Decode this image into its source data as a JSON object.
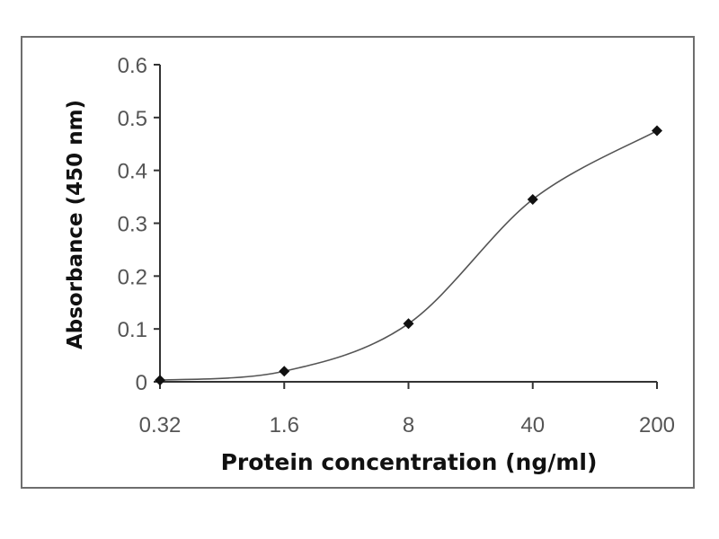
{
  "chart_data": {
    "type": "line",
    "title": "",
    "xlabel": "Protein concentration (ng/ml)",
    "ylabel": "Absorbance (450 nm)",
    "x_scale": "log",
    "categories": [
      "0.32",
      "1.6",
      "8",
      "40",
      "200"
    ],
    "x": [
      0.32,
      1.6,
      8,
      40,
      200
    ],
    "series": [
      {
        "name": "Absorbance",
        "values": [
          0.003,
          0.02,
          0.11,
          0.345,
          0.475
        ],
        "marker": "diamond",
        "smooth": true
      }
    ],
    "ylim": [
      0,
      0.6
    ],
    "yticks": [
      "0",
      "0.1",
      "0.2",
      "0.3",
      "0.4",
      "0.5",
      "0.6"
    ],
    "grid": false,
    "legend": "none",
    "colors": {
      "line": "#555555",
      "marker": "#111111",
      "axis": "#333333",
      "text": "#555555",
      "frame": "#6e6e6e"
    }
  }
}
